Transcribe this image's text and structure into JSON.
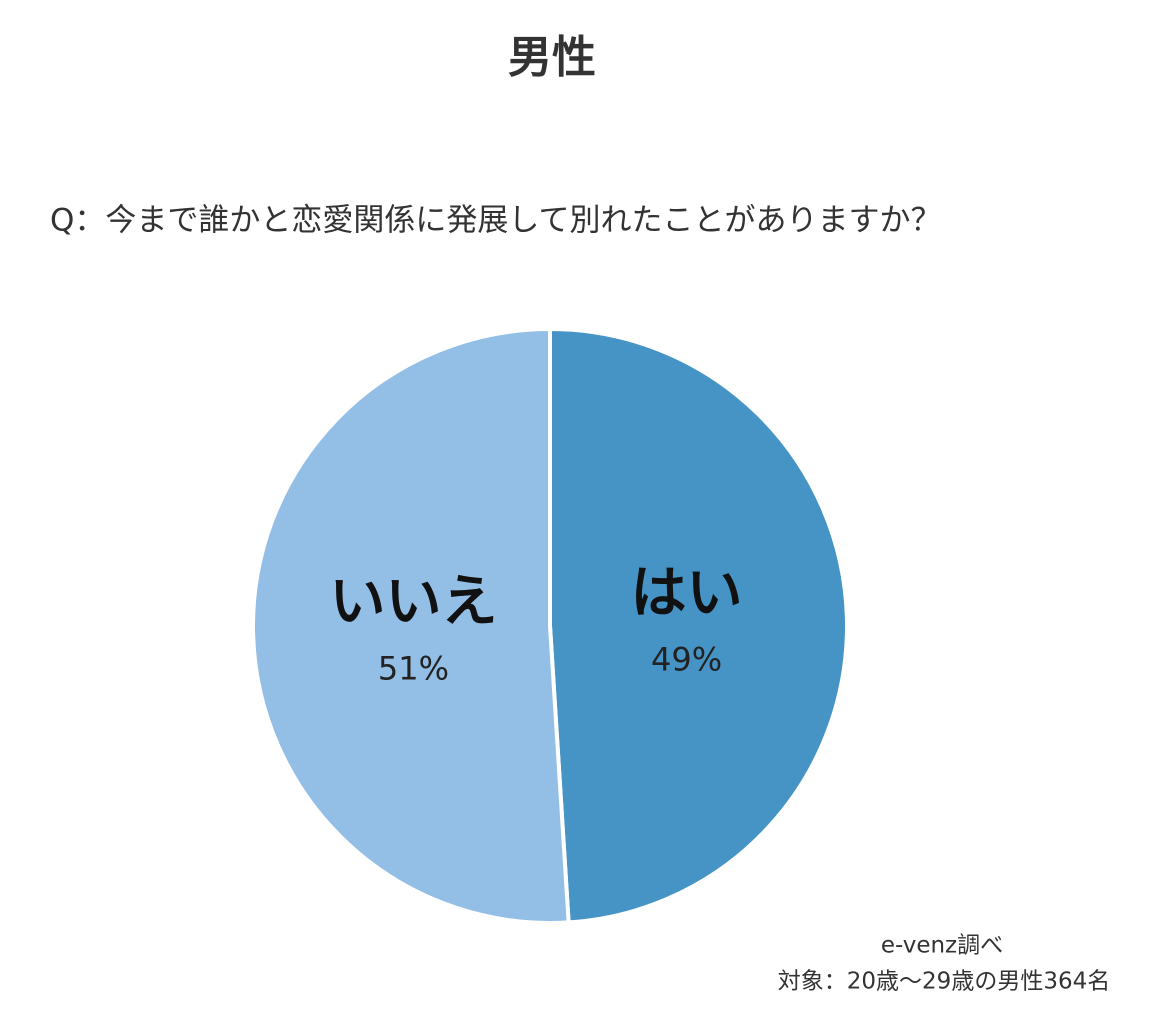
{
  "chart_data": {
    "type": "pie",
    "title": "男性",
    "subtitle": "Q：今まで誰かと恋愛関係に発展して別れたことがありますか？",
    "categories": [
      "はい",
      "いいえ"
    ],
    "values": [
      49,
      51
    ],
    "value_labels": [
      "49%",
      "51%"
    ],
    "colors": [
      "#4694c5",
      "#93bfe6"
    ],
    "notes": [
      "e-venz調べ",
      "対象：20歳〜29歳の男性364名"
    ]
  }
}
